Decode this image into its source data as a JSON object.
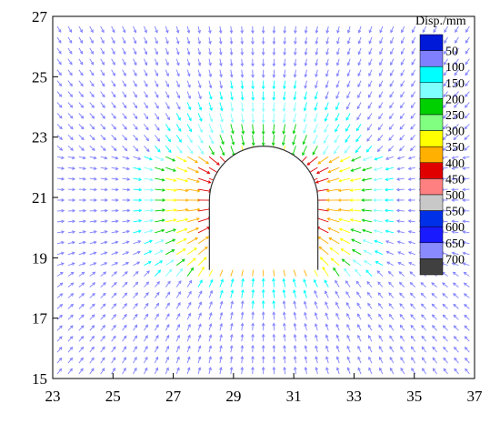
{
  "chart_data": {
    "type": "vector-field",
    "xlim": [
      23,
      37
    ],
    "ylim": [
      15,
      27
    ],
    "x_ticks": [
      "23",
      "25",
      "27",
      "29",
      "31",
      "33",
      "35",
      "37"
    ],
    "y_ticks": [
      "15",
      "17",
      "19",
      "21",
      "23",
      "25",
      "27"
    ],
    "grid": false,
    "legend": {
      "title": "Disp./mm",
      "placement": "top-right",
      "levels": [
        "50",
        "100",
        "150",
        "200",
        "250",
        "300",
        "350",
        "400",
        "450",
        "500",
        "550",
        "600",
        "650",
        "700"
      ],
      "colors": [
        "#0018d8",
        "#8080ff",
        "#00ffff",
        "#80ffff",
        "#00d000",
        "#80ff80",
        "#ffff00",
        "#ffb000",
        "#e00000",
        "#ff8080",
        "#c8c8c8",
        "#0030e8",
        "#1a1aff",
        "#8a8aff",
        "#404040"
      ]
    },
    "tunnel": {
      "center": [
        30,
        20.9
      ],
      "radius": 1.8,
      "wall_bottom": 18.6
    }
  }
}
